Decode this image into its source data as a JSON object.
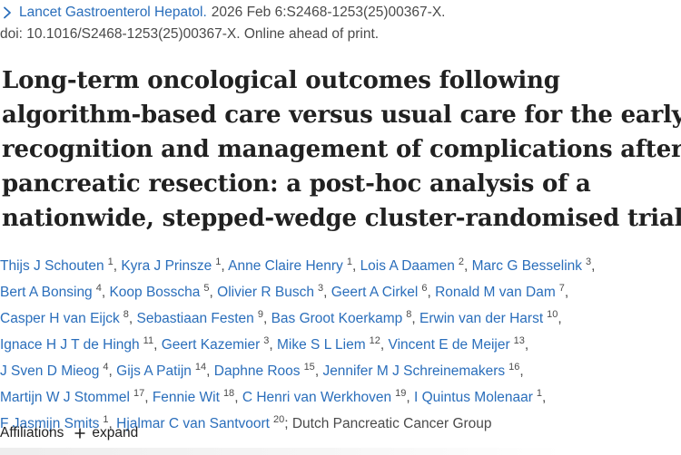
{
  "citation": {
    "journal": "Lancet Gastroenterol Hepatol.",
    "details": "2026 Feb 6:S2468-1253(25)00367-X.",
    "doi_line": "doi: 10.1016/S2468-1253(25)00367-X. Online ahead of print."
  },
  "title_lines": [
    "Long-term oncological outcomes following",
    "algorithm-based care versus usual care for the early",
    "recognition and management of complications after",
    "pancreatic resection: a post-hoc analysis of a",
    "nationwide, stepped-wedge cluster-randomised trial"
  ],
  "authors": [
    {
      "name": "Thijs J Schouten",
      "aff": "1"
    },
    {
      "name": "Kyra J Prinsze",
      "aff": "1"
    },
    {
      "name": "Anne Claire Henry",
      "aff": "1"
    },
    {
      "name": "Lois A Daamen",
      "aff": "2"
    },
    {
      "name": "Marc G Besselink",
      "aff": "3"
    },
    {
      "name": "Bert A Bonsing",
      "aff": "4"
    },
    {
      "name": "Koop Bosscha",
      "aff": "5"
    },
    {
      "name": "Olivier R Busch",
      "aff": "3"
    },
    {
      "name": "Geert A Cirkel",
      "aff": "6"
    },
    {
      "name": "Ronald M van Dam",
      "aff": "7"
    },
    {
      "name": "Casper H van Eijck",
      "aff": "8"
    },
    {
      "name": "Sebastiaan Festen",
      "aff": "9"
    },
    {
      "name": "Bas Groot Koerkamp",
      "aff": "8"
    },
    {
      "name": "Erwin van der Harst",
      "aff": "10"
    },
    {
      "name": "Ignace H J T de Hingh",
      "aff": "11"
    },
    {
      "name": "Geert Kazemier",
      "aff": "3"
    },
    {
      "name": "Mike S L Liem",
      "aff": "12"
    },
    {
      "name": "Vincent E de Meijer",
      "aff": "13"
    },
    {
      "name": "J Sven D Mieog",
      "aff": "4"
    },
    {
      "name": "Gijs A Patijn",
      "aff": "14"
    },
    {
      "name": "Daphne Roos",
      "aff": "15"
    },
    {
      "name": "Jennifer M J Schreinemakers",
      "aff": "16"
    },
    {
      "name": "Martijn W J Stommel",
      "aff": "17"
    },
    {
      "name": "Fennie Wit",
      "aff": "18"
    },
    {
      "name": "C Henri van Werkhoven",
      "aff": "19"
    },
    {
      "name": "I Quintus Molenaar",
      "aff": "1"
    },
    {
      "name": "F Jasmijn Smits",
      "aff": "1"
    },
    {
      "name": "Hjalmar C van Santvoort",
      "aff": "20"
    }
  ],
  "author_lines": [
    [
      0,
      1,
      2,
      3,
      4
    ],
    [
      5,
      6,
      7,
      8,
      9
    ],
    [
      10,
      11,
      12,
      13
    ],
    [
      14,
      15,
      16,
      17
    ],
    [
      18,
      19,
      20,
      21
    ],
    [
      22,
      23,
      24,
      25
    ],
    [
      26,
      27
    ]
  ],
  "group": "Dutch Pancreatic Cancer Group",
  "affiliations": {
    "label": "Affiliations",
    "expand_label": "expand"
  },
  "colors": {
    "link": "#2a6ebb",
    "text": "#212121",
    "muted": "#4a4a4a"
  }
}
